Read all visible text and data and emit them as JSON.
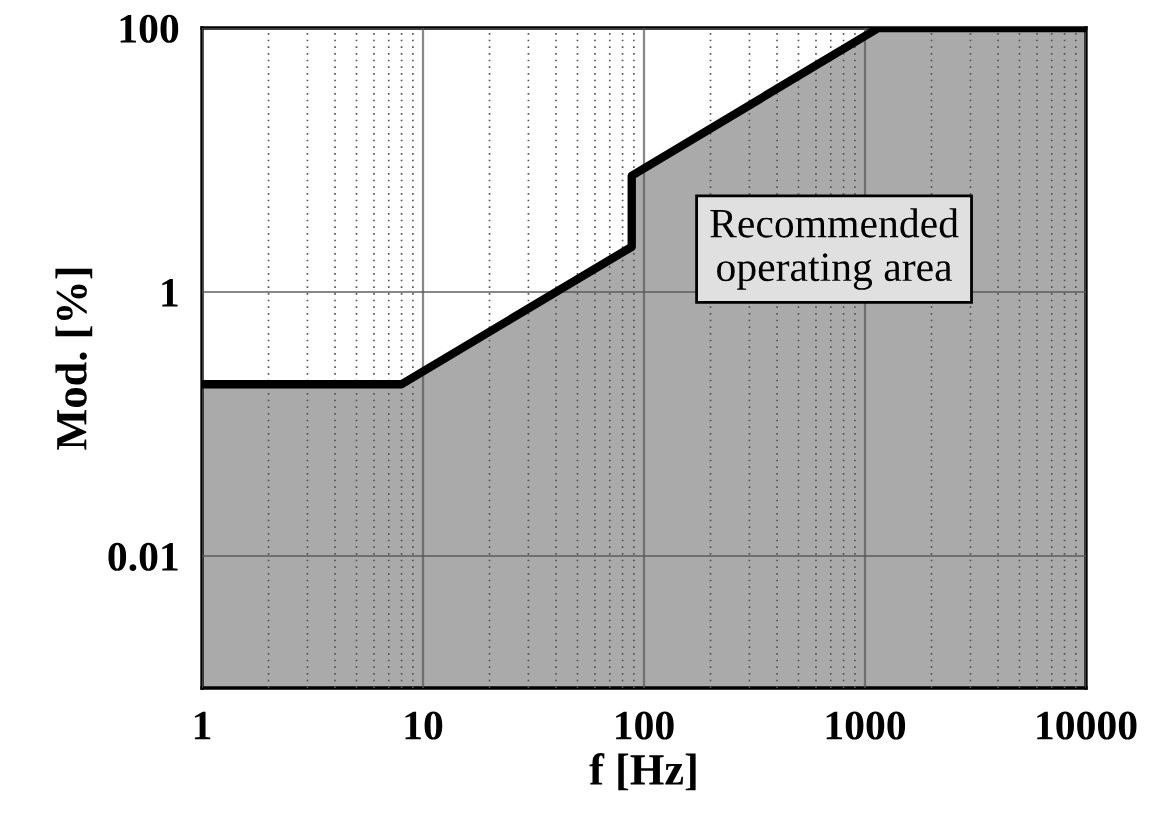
{
  "chart_data": {
    "type": "area",
    "xlabel": "f [Hz]",
    "ylabel": "Mod. [%]",
    "log": "xy",
    "x": [
      1,
      8,
      88,
      88,
      1150,
      10000
    ],
    "series": [
      {
        "color": "#aaaaaa",
        "values": [
          0.2,
          0.2,
          2.2,
          7.6,
          100,
          100
        ]
      }
    ],
    "xlim": [
      1,
      10000
    ],
    "xticks": [
      1,
      10,
      100,
      1000,
      10000
    ],
    "ylim": [
      0.001,
      100
    ],
    "yticks": [
      0.01,
      1,
      100
    ],
    "grid": true,
    "annotations": [
      "Recommended\noperating area"
    ]
  }
}
